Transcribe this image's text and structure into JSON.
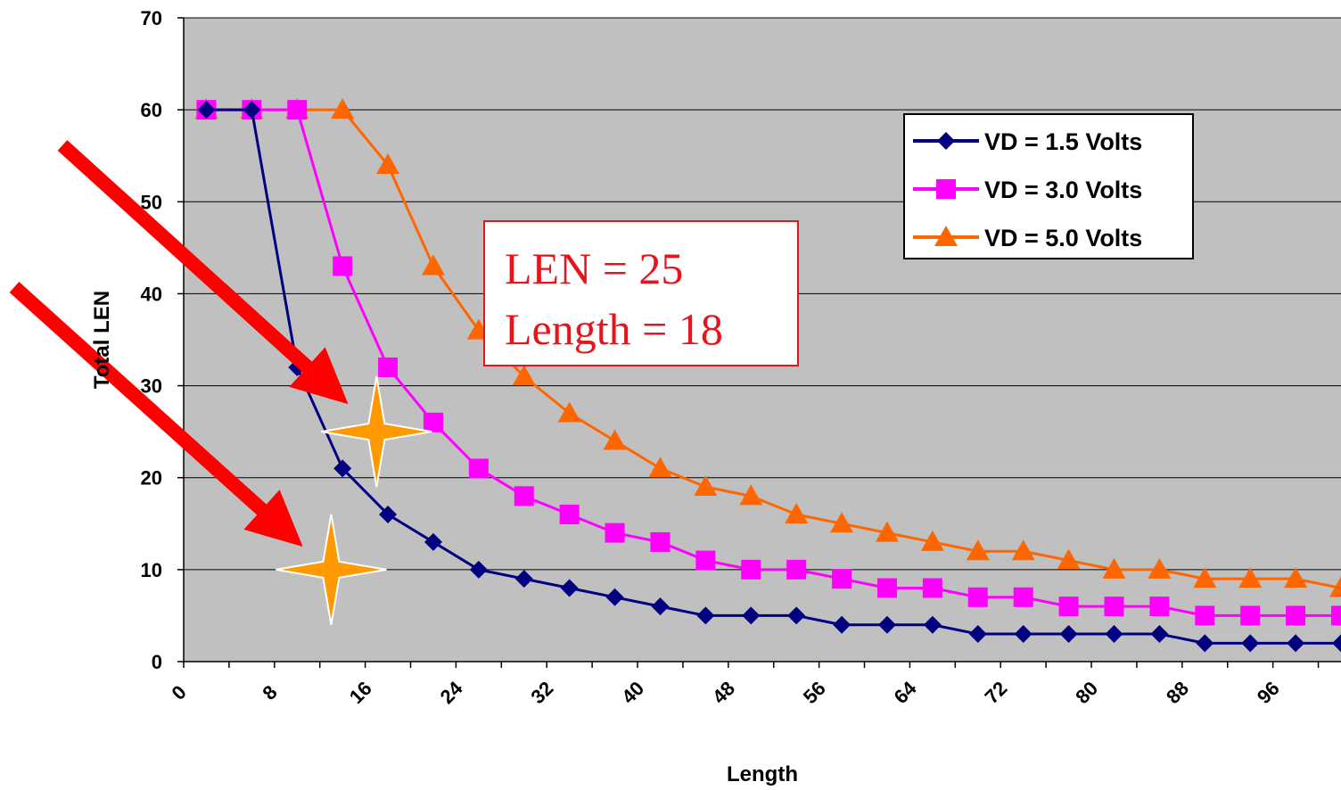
{
  "chart_data": {
    "type": "line",
    "xlabel": "Length",
    "ylabel": "Total LEN",
    "xlim": [
      0,
      102
    ],
    "ylim": [
      0,
      70
    ],
    "yticks": [
      0,
      10,
      20,
      30,
      40,
      50,
      60,
      70
    ],
    "xticks": [
      0,
      8,
      16,
      24,
      32,
      40,
      48,
      56,
      64,
      72,
      80,
      88,
      96
    ],
    "grid": "horizontal",
    "plot_background": "#c0c0c0",
    "legend_position": "top-right",
    "x": [
      2,
      6,
      10,
      14,
      18,
      22,
      26,
      30,
      34,
      38,
      42,
      46,
      50,
      54,
      58,
      62,
      66,
      70,
      74,
      78,
      82,
      86,
      90,
      94,
      98,
      102
    ],
    "series": [
      {
        "name": "VD = 1.5 Volts",
        "color": "#000080",
        "marker": "diamond",
        "values": [
          60,
          60,
          32,
          21,
          16,
          13,
          10,
          9,
          8,
          7,
          6,
          5,
          5,
          5,
          4,
          4,
          4,
          3,
          3,
          3,
          3,
          3,
          2,
          2,
          2,
          2
        ]
      },
      {
        "name": "VD = 3.0 Volts",
        "color": "#ff00ff",
        "marker": "square",
        "values": [
          60,
          60,
          60,
          43,
          32,
          26,
          21,
          18,
          16,
          14,
          13,
          11,
          10,
          10,
          9,
          8,
          8,
          7,
          7,
          6,
          6,
          6,
          5,
          5,
          5,
          5
        ]
      },
      {
        "name": "VD = 5.0 Volts",
        "color": "#ff6600",
        "marker": "triangle",
        "values": [
          60,
          60,
          60,
          60,
          54,
          43,
          36,
          31,
          27,
          24,
          21,
          19,
          18,
          16,
          15,
          14,
          13,
          12,
          12,
          11,
          10,
          10,
          9,
          9,
          9,
          8
        ]
      }
    ],
    "annotation": {
      "lines": [
        "LEN = 25",
        "Length = 18"
      ],
      "color": "#e8141b"
    },
    "highlight_markers": [
      {
        "name": "star-icon",
        "x": 17,
        "y": 25,
        "color": "#ff9900"
      },
      {
        "name": "star-icon",
        "x": 13,
        "y": 10,
        "color": "#ff9900"
      }
    ],
    "arrows": [
      {
        "name": "arrow-icon",
        "color": "#ff0000",
        "target_x": 14.5,
        "target_y": 28
      },
      {
        "name": "arrow-icon",
        "color": "#ff0000",
        "target_x": 10.5,
        "target_y": 12.5
      }
    ]
  }
}
